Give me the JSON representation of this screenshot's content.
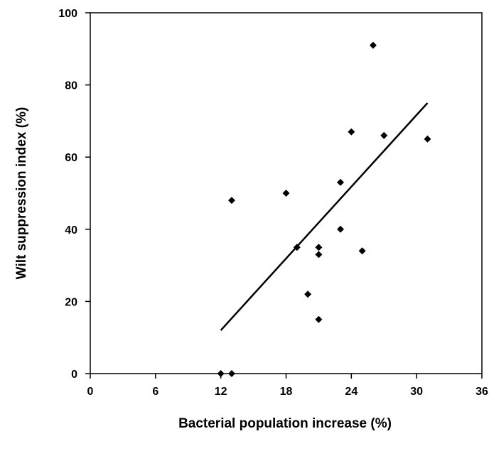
{
  "chart_data": {
    "type": "scatter",
    "xlabel": "Bacterial population increase (%)",
    "ylabel": "Wilt suppression index (%)",
    "xlim": [
      0,
      36
    ],
    "ylim": [
      0,
      100
    ],
    "x_ticks": [
      0,
      6,
      12,
      18,
      24,
      30,
      36
    ],
    "y_ticks": [
      0,
      20,
      40,
      60,
      80,
      100
    ],
    "grid": false,
    "legend": "none",
    "series": [
      {
        "x": [
          12,
          13,
          13,
          18,
          19,
          20,
          21,
          21,
          21,
          23,
          23,
          24,
          25,
          26,
          27,
          31
        ],
        "y": [
          0,
          0,
          48,
          50,
          35,
          22,
          15,
          33,
          35,
          40,
          53,
          67,
          34,
          91,
          66,
          65
        ]
      }
    ],
    "trendline": {
      "x": [
        12,
        31
      ],
      "y": [
        12,
        75
      ]
    },
    "marker_color": "#000000",
    "line_color": "#000000"
  }
}
